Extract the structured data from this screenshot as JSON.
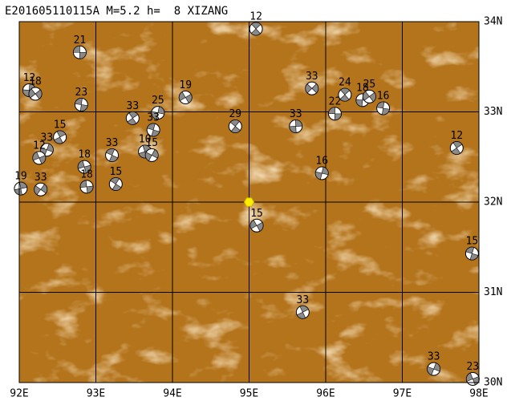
{
  "map": {
    "title": "E201605110115A M=5.2 h=  8 XIZANG",
    "xlim": [
      92,
      98
    ],
    "ylim": [
      30,
      34
    ],
    "xticks": [
      {
        "value": 92,
        "label": "92E"
      },
      {
        "value": 93,
        "label": "93E"
      },
      {
        "value": 94,
        "label": "94E"
      },
      {
        "value": 95,
        "label": "95E"
      },
      {
        "value": 96,
        "label": "96E"
      },
      {
        "value": 97,
        "label": "97E"
      },
      {
        "value": 98,
        "label": "98E"
      }
    ],
    "yticks": [
      {
        "value": 30,
        "label": "30N"
      },
      {
        "value": 31,
        "label": "31N"
      },
      {
        "value": 32,
        "label": "32N"
      },
      {
        "value": 33,
        "label": "33N"
      },
      {
        "value": 34,
        "label": "34N"
      }
    ],
    "epicenter": {
      "lon": 95.0,
      "lat": 32.0,
      "color": "#ffee00"
    },
    "events": [
      {
        "depth": 21,
        "lon": 92.79,
        "lat": 33.66
      },
      {
        "depth": 12,
        "lon": 95.09,
        "lat": 33.92
      },
      {
        "depth": 12,
        "lon": 92.13,
        "lat": 33.24
      },
      {
        "depth": 18,
        "lon": 92.21,
        "lat": 33.2
      },
      {
        "depth": 23,
        "lon": 92.81,
        "lat": 33.08
      },
      {
        "depth": 33,
        "lon": 93.48,
        "lat": 32.93
      },
      {
        "depth": 25,
        "lon": 93.81,
        "lat": 32.99
      },
      {
        "depth": 19,
        "lon": 94.17,
        "lat": 33.16
      },
      {
        "depth": 33,
        "lon": 93.75,
        "lat": 32.8
      },
      {
        "depth": 15,
        "lon": 92.53,
        "lat": 32.72
      },
      {
        "depth": 33,
        "lon": 92.36,
        "lat": 32.58
      },
      {
        "depth": 12,
        "lon": 92.26,
        "lat": 32.49
      },
      {
        "depth": 33,
        "lon": 93.21,
        "lat": 32.52
      },
      {
        "depth": 10,
        "lon": 93.64,
        "lat": 32.56
      },
      {
        "depth": 15,
        "lon": 93.73,
        "lat": 32.52
      },
      {
        "depth": 18,
        "lon": 92.85,
        "lat": 32.39
      },
      {
        "depth": 15,
        "lon": 93.26,
        "lat": 32.2
      },
      {
        "depth": 19,
        "lon": 92.02,
        "lat": 32.15
      },
      {
        "depth": 33,
        "lon": 92.28,
        "lat": 32.14
      },
      {
        "depth": 18,
        "lon": 92.88,
        "lat": 32.17
      },
      {
        "depth": 29,
        "lon": 94.82,
        "lat": 32.84
      },
      {
        "depth": 33,
        "lon": 95.61,
        "lat": 32.84
      },
      {
        "depth": 33,
        "lon": 95.82,
        "lat": 33.26
      },
      {
        "depth": 22,
        "lon": 96.12,
        "lat": 32.98
      },
      {
        "depth": 24,
        "lon": 96.25,
        "lat": 33.19
      },
      {
        "depth": 18,
        "lon": 96.48,
        "lat": 33.13
      },
      {
        "depth": 25,
        "lon": 96.57,
        "lat": 33.17
      },
      {
        "depth": 16,
        "lon": 96.75,
        "lat": 33.04
      },
      {
        "depth": 12,
        "lon": 97.71,
        "lat": 32.6
      },
      {
        "depth": 16,
        "lon": 95.95,
        "lat": 32.32
      },
      {
        "depth": 15,
        "lon": 95.1,
        "lat": 31.74
      },
      {
        "depth": 15,
        "lon": 97.91,
        "lat": 31.43
      },
      {
        "depth": 33,
        "lon": 95.7,
        "lat": 30.78
      },
      {
        "depth": 33,
        "lon": 97.41,
        "lat": 30.15
      },
      {
        "depth": 23,
        "lon": 97.92,
        "lat": 30.04
      }
    ]
  }
}
